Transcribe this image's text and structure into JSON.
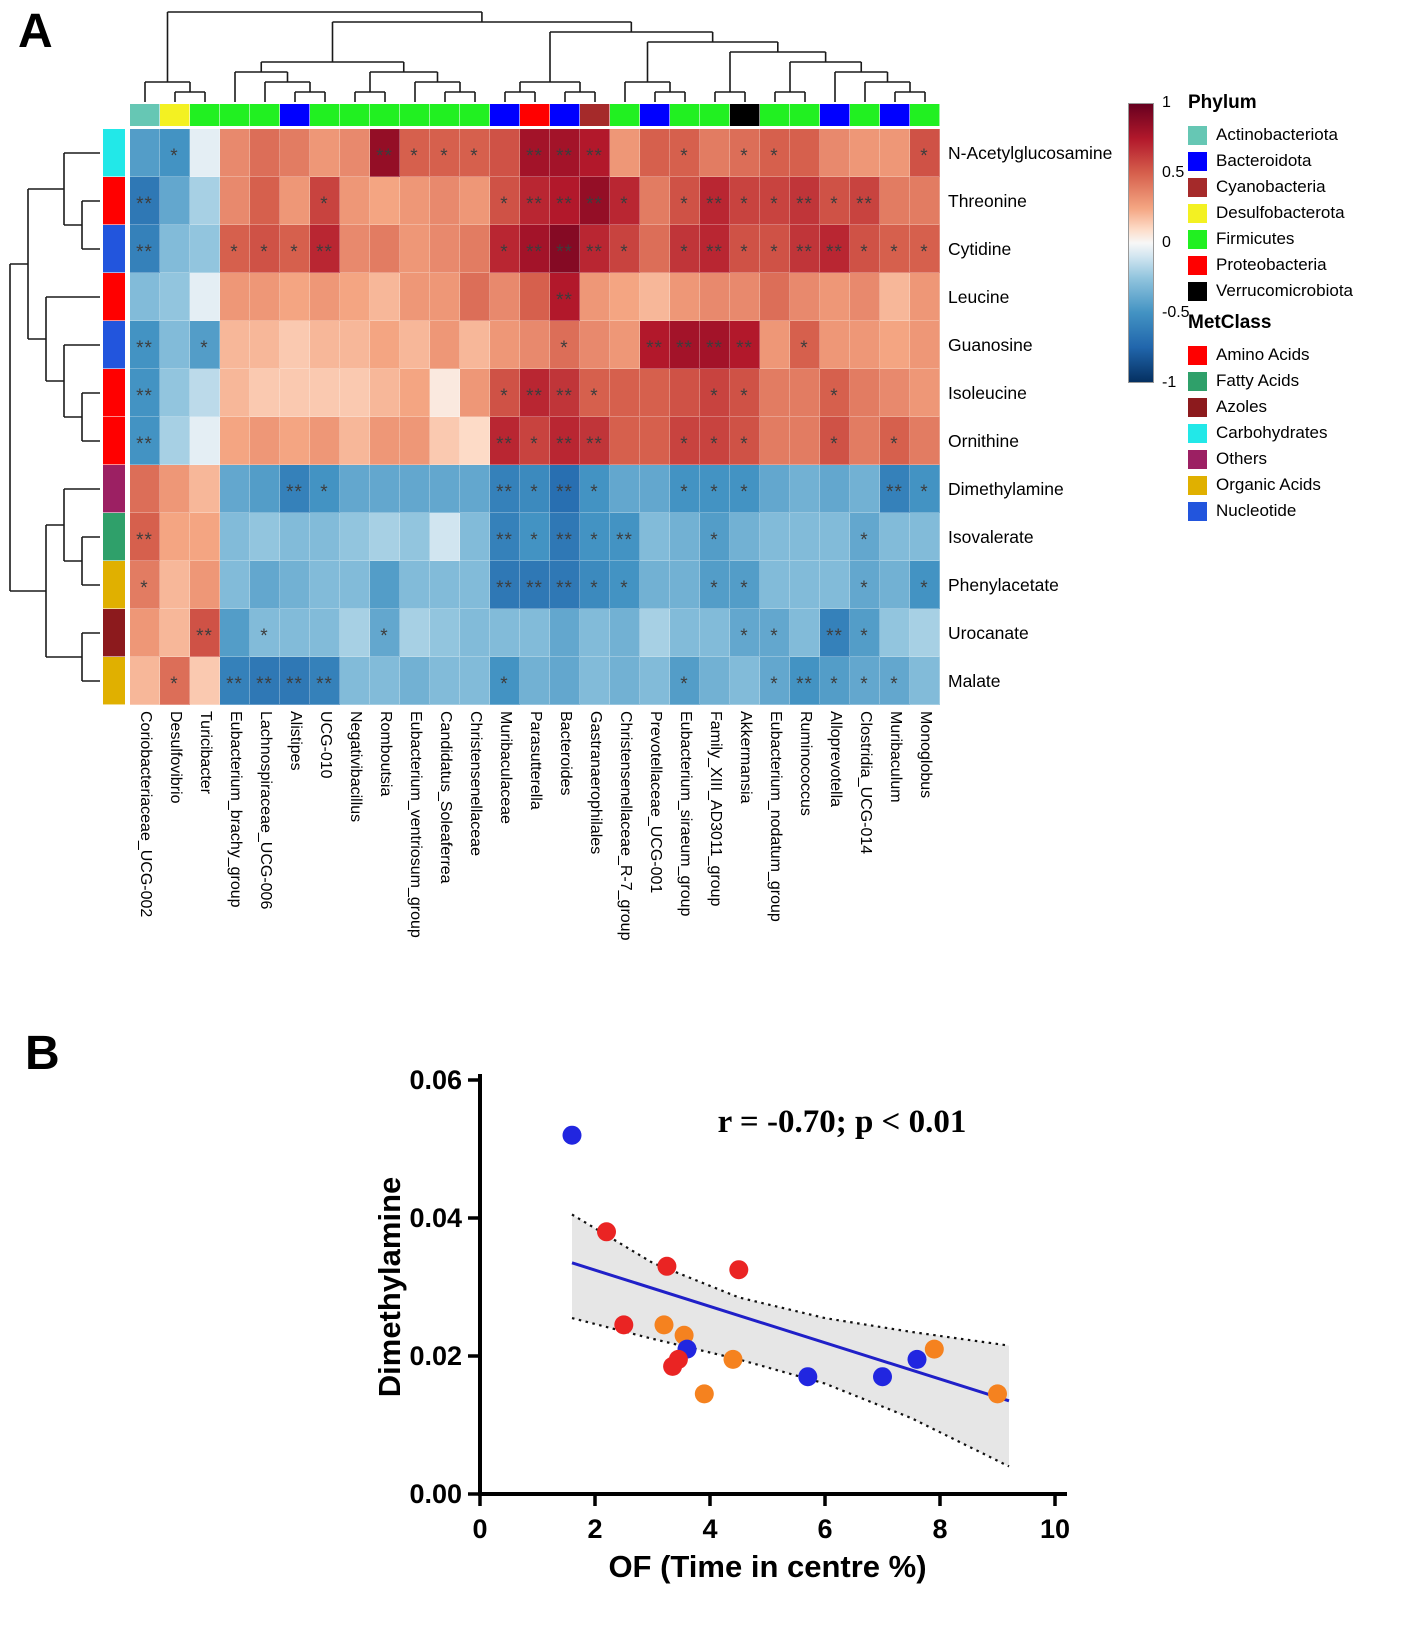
{
  "panel_a": {
    "label": "A",
    "colorbar": {
      "ticks": [
        "1",
        "0.5",
        "0",
        "-0.5",
        "-1"
      ]
    },
    "phylum_legend": {
      "title": "Phylum",
      "items": [
        {
          "label": "Actinobacteriota",
          "color": "#66C7B4"
        },
        {
          "label": "Bacteroidota",
          "color": "#0000FF"
        },
        {
          "label": "Cyanobacteria",
          "color": "#A52A2A"
        },
        {
          "label": "Desulfobacterota",
          "color": "#F3F122"
        },
        {
          "label": "Firmicutes",
          "color": "#21F021"
        },
        {
          "label": "Proteobacteria",
          "color": "#FF0000"
        },
        {
          "label": "Verrucomicrobiota",
          "color": "#000000"
        }
      ]
    },
    "metclass_legend": {
      "title": "MetClass",
      "items": [
        {
          "label": "Amino Acids",
          "color": "#FF0000",
          "textured": false
        },
        {
          "label": "Fatty Acids",
          "color": "#2FA06A",
          "textured": true
        },
        {
          "label": "Azoles",
          "color": "#8C1A1D",
          "textured": false
        },
        {
          "label": "Carbohydrates",
          "color": "#22E8E8",
          "textured": false
        },
        {
          "label": "Others",
          "color": "#9C2063",
          "textured": false
        },
        {
          "label": "Organic Acids",
          "color": "#E0B000",
          "textured": false
        },
        {
          "label": "Nucleotide",
          "color": "#2255DD",
          "textured": false
        }
      ]
    }
  },
  "panel_b": {
    "label": "B"
  },
  "chart_data": [
    {
      "type": "heatmap",
      "rows": [
        "N-Acetylglucosamine",
        "Threonine",
        "Cytidine",
        "Leucine",
        "Guanosine",
        "Isoleucine",
        "Ornithine",
        "Dimethylamine",
        "Isovalerate",
        "Phenylacetate",
        "Urocanate",
        "Malate"
      ],
      "row_metclass": [
        "Carbohydrates",
        "Amino Acids",
        "Nucleotide",
        "Amino Acids",
        "Nucleotide",
        "Amino Acids",
        "Amino Acids",
        "Others",
        "Fatty Acids",
        "Organic Acids",
        "Azoles",
        "Organic Acids"
      ],
      "columns": [
        "Coriobacteriaceae_UCG-002",
        "Desulfovibrio",
        "Turicibacter",
        "Eubacterium_brachy_group",
        "Lachnospiraceae_UCG-006",
        "Alistipes",
        "UCG-010",
        "Negativibacillus",
        "Romboutsia",
        "Eubacterium_ventriosum_group",
        "Candidatus_Soleaferrea",
        "Christensenellaceae",
        "Muribaculaceae",
        "Parasutterella",
        "Bacteroides",
        "Gastranaerophilales",
        "Christensenellaceae_R-7_group",
        "Prevotellaceae_UCG-001",
        "Eubacterium_siraeum_group",
        "Family_XIII_AD3011_group",
        "Akkermansia",
        "Eubacterium_nodatum_group",
        "Ruminococcus",
        "Alloprevotella",
        "Clostridia_UCG-014",
        "Muribaculum",
        "Monoglobus"
      ],
      "column_phylum": [
        "Actinobacteriota",
        "Desulfobacterota",
        "Firmicutes",
        "Firmicutes",
        "Firmicutes",
        "Bacteroidota",
        "Firmicutes",
        "Firmicutes",
        "Firmicutes",
        "Firmicutes",
        "Firmicutes",
        "Firmicutes",
        "Bacteroidota",
        "Proteobacteria",
        "Bacteroidota",
        "Cyanobacteria",
        "Firmicutes",
        "Bacteroidota",
        "Firmicutes",
        "Firmicutes",
        "Verrucomicrobiota",
        "Firmicutes",
        "Firmicutes",
        "Bacteroidota",
        "Firmicutes",
        "Bacteroidota",
        "Firmicutes"
      ],
      "colorscale": {
        "min": -1,
        "max": 1
      },
      "values": [
        [
          -0.45,
          -0.5,
          -0.05,
          0.35,
          0.45,
          0.4,
          0.3,
          0.35,
          0.85,
          0.5,
          0.5,
          0.5,
          0.55,
          0.8,
          0.8,
          0.75,
          0.3,
          0.5,
          0.5,
          0.4,
          0.45,
          0.5,
          0.5,
          0.35,
          0.3,
          0.3,
          0.55
        ],
        [
          -0.65,
          -0.4,
          -0.2,
          0.35,
          0.5,
          0.3,
          0.6,
          0.3,
          0.25,
          0.3,
          0.35,
          0.3,
          0.55,
          0.7,
          0.75,
          0.85,
          0.7,
          0.4,
          0.55,
          0.7,
          0.6,
          0.6,
          0.65,
          0.55,
          0.6,
          0.4,
          0.4
        ],
        [
          -0.6,
          -0.3,
          -0.25,
          0.5,
          0.55,
          0.5,
          0.7,
          0.35,
          0.4,
          0.3,
          0.35,
          0.4,
          0.7,
          0.8,
          0.9,
          0.7,
          0.6,
          0.45,
          0.65,
          0.7,
          0.55,
          0.55,
          0.65,
          0.7,
          0.55,
          0.5,
          0.5
        ],
        [
          -0.3,
          -0.25,
          -0.05,
          0.3,
          0.3,
          0.25,
          0.3,
          0.25,
          0.2,
          0.3,
          0.3,
          0.45,
          0.35,
          0.5,
          0.75,
          0.3,
          0.25,
          0.2,
          0.3,
          0.35,
          0.35,
          0.45,
          0.35,
          0.3,
          0.35,
          0.2,
          0.3
        ],
        [
          -0.5,
          -0.3,
          -0.45,
          0.2,
          0.2,
          0.15,
          0.2,
          0.2,
          0.25,
          0.2,
          0.3,
          0.2,
          0.3,
          0.35,
          0.45,
          0.35,
          0.3,
          0.75,
          0.8,
          0.8,
          0.75,
          0.3,
          0.5,
          0.3,
          0.3,
          0.25,
          0.3
        ],
        [
          -0.5,
          -0.25,
          -0.15,
          0.2,
          0.15,
          0.15,
          0.15,
          0.15,
          0.2,
          0.25,
          0.05,
          0.3,
          0.55,
          0.7,
          0.65,
          0.5,
          0.5,
          0.5,
          0.55,
          0.6,
          0.55,
          0.4,
          0.4,
          0.5,
          0.4,
          0.35,
          0.3
        ],
        [
          -0.5,
          -0.2,
          -0.05,
          0.25,
          0.3,
          0.25,
          0.3,
          0.2,
          0.3,
          0.3,
          0.15,
          0.1,
          0.7,
          0.6,
          0.7,
          0.65,
          0.5,
          0.5,
          0.6,
          0.6,
          0.55,
          0.4,
          0.4,
          0.55,
          0.4,
          0.5,
          0.4
        ],
        [
          0.45,
          0.3,
          0.2,
          -0.4,
          -0.45,
          -0.6,
          -0.5,
          -0.4,
          -0.4,
          -0.4,
          -0.4,
          -0.4,
          -0.6,
          -0.55,
          -0.7,
          -0.5,
          -0.4,
          -0.4,
          -0.5,
          -0.5,
          -0.5,
          -0.4,
          -0.35,
          -0.4,
          -0.35,
          -0.6,
          -0.5
        ],
        [
          0.5,
          0.25,
          0.25,
          -0.3,
          -0.25,
          -0.3,
          -0.3,
          -0.25,
          -0.2,
          -0.25,
          -0.1,
          -0.3,
          -0.6,
          -0.5,
          -0.65,
          -0.5,
          -0.5,
          -0.3,
          -0.35,
          -0.45,
          -0.35,
          -0.3,
          -0.3,
          -0.3,
          -0.4,
          -0.3,
          -0.3
        ],
        [
          0.4,
          0.2,
          0.3,
          -0.3,
          -0.4,
          -0.35,
          -0.3,
          -0.3,
          -0.45,
          -0.3,
          -0.3,
          -0.3,
          -0.65,
          -0.65,
          -0.65,
          -0.55,
          -0.5,
          -0.35,
          -0.35,
          -0.45,
          -0.45,
          -0.3,
          -0.3,
          -0.3,
          -0.4,
          -0.35,
          -0.5
        ],
        [
          0.3,
          0.2,
          0.55,
          -0.45,
          -0.3,
          -0.3,
          -0.3,
          -0.2,
          -0.4,
          -0.2,
          -0.25,
          -0.3,
          -0.3,
          -0.3,
          -0.4,
          -0.3,
          -0.35,
          -0.2,
          -0.3,
          -0.3,
          -0.4,
          -0.4,
          -0.3,
          -0.6,
          -0.45,
          -0.25,
          -0.2
        ],
        [
          0.2,
          0.45,
          0.15,
          -0.6,
          -0.65,
          -0.65,
          -0.6,
          -0.3,
          -0.3,
          -0.35,
          -0.3,
          -0.3,
          -0.5,
          -0.35,
          -0.4,
          -0.3,
          -0.35,
          -0.3,
          -0.45,
          -0.35,
          -0.3,
          -0.4,
          -0.5,
          -0.45,
          -0.4,
          -0.4,
          -0.3
        ]
      ],
      "sig": [
        [
          "",
          "*",
          "",
          "",
          "",
          "",
          "",
          "",
          "**",
          "*",
          "*",
          "*",
          "",
          "**",
          "**",
          "**",
          "",
          "",
          "*",
          "",
          "*",
          "*",
          "",
          "",
          "",
          "",
          "*"
        ],
        [
          "**",
          "",
          "",
          "",
          "",
          "",
          "*",
          "",
          "",
          "",
          "",
          "",
          "*",
          "**",
          "**",
          "**",
          "*",
          "",
          "*",
          "**",
          "*",
          "*",
          "**",
          "*",
          "**",
          "",
          ""
        ],
        [
          "**",
          "",
          "",
          "*",
          "*",
          "*",
          "**",
          "",
          "",
          "",
          "",
          "",
          "*",
          "**",
          "**",
          "**",
          "*",
          "",
          "*",
          "**",
          "*",
          "*",
          "**",
          "**",
          "*",
          "*",
          "*"
        ],
        [
          "",
          "",
          "",
          "",
          "",
          "",
          "",
          "",
          "",
          "",
          "",
          "",
          "",
          "",
          "**",
          "",
          "",
          "",
          "",
          "",
          "",
          "",
          "",
          "",
          "",
          "",
          ""
        ],
        [
          "**",
          "",
          "*",
          "",
          "",
          "",
          "",
          "",
          "",
          "",
          "",
          "",
          "",
          "",
          "*",
          "",
          "",
          "**",
          "**",
          "**",
          "**",
          "",
          "*",
          "",
          "",
          "",
          ""
        ],
        [
          "**",
          "",
          "",
          "",
          "",
          "",
          "",
          "",
          "",
          "",
          "",
          "",
          "*",
          "**",
          "**",
          "*",
          "",
          "",
          "",
          "*",
          "*",
          "",
          "",
          "*",
          "",
          "",
          ""
        ],
        [
          "**",
          "",
          "",
          "",
          "",
          "",
          "",
          "",
          "",
          "",
          "",
          "",
          "**",
          "*",
          "**",
          "**",
          "",
          "",
          "*",
          "*",
          "*",
          "",
          "",
          "*",
          "",
          "*",
          ""
        ],
        [
          "",
          "",
          "",
          "",
          "",
          "**",
          "*",
          "",
          "",
          "",
          "",
          "",
          "**",
          "*",
          "**",
          "*",
          "",
          "",
          "*",
          "*",
          "*",
          "",
          "",
          "",
          "",
          "**",
          "*"
        ],
        [
          "**",
          "",
          "",
          "",
          "",
          "",
          "",
          "",
          "",
          "",
          "",
          "",
          "**",
          "*",
          "**",
          "*",
          "**",
          "",
          "",
          "*",
          "",
          "",
          "",
          "",
          "*",
          "",
          ""
        ],
        [
          "*",
          "",
          "",
          "",
          "",
          "",
          "",
          "",
          "",
          "",
          "",
          "",
          "**",
          "**",
          "**",
          "*",
          "*",
          "",
          "",
          "*",
          "*",
          "",
          "",
          "",
          "*",
          "",
          "*"
        ],
        [
          "",
          "",
          "**",
          "",
          "*",
          "",
          "",
          "",
          "*",
          "",
          "",
          "",
          "",
          "",
          "",
          "",
          "",
          "",
          "",
          "",
          "*",
          "*",
          "",
          "**",
          "*",
          "",
          ""
        ],
        [
          "",
          "*",
          "",
          "**",
          "**",
          "**",
          "**",
          "",
          "",
          "",
          "",
          "",
          "*",
          "",
          "",
          "",
          "",
          "",
          "*",
          "",
          "",
          "*",
          "**",
          "*",
          "*",
          "*",
          ""
        ]
      ],
      "col_dendrogram": [
        [
          0,
          [
            1,
            2
          ]
        ],
        [
          [
            [
              3,
              [
                4,
                [
                  5,
                  6
                ]
              ]
            ],
            [
              [
                7,
                8
              ],
              [
                9,
                [
                  10,
                  11
                ]
              ]
            ]
          ],
          [
            [
              [
                12,
                13
              ],
              [
                14,
                15
              ]
            ],
            [
              [
                16,
                [
                  17,
                  18
                ]
              ],
              [
                [
                  19,
                  20
                ],
                [
                  [
                    21,
                    22
                  ],
                  [
                    23,
                    [
                      24,
                      [
                        25,
                        26
                      ]
                    ]
                  ]
                ]
              ]
            ]
          ]
        ]
      ],
      "row_dendrogram": [
        [
          [
            0,
            [
              1,
              2
            ]
          ],
          [
            3,
            [
              4,
              [
                5,
                6
              ]
            ]
          ]
        ],
        [
          [
            7,
            [
              8,
              9
            ]
          ],
          [
            10,
            11
          ]
        ]
      ]
    },
    {
      "type": "scatter",
      "annotation": "r = -0.70; p < 0.01",
      "xlabel": "OF (Time in centre %)",
      "ylabel": "Dimethylamine",
      "xlim": [
        0,
        10
      ],
      "ylim": [
        0,
        0.06
      ],
      "xtick_labels": [
        "0",
        "2",
        "4",
        "6",
        "8",
        "10"
      ],
      "ytick_labels": [
        "0.00",
        "0.02",
        "0.04",
        "0.06"
      ],
      "point_colors": {
        "blue": "#2126E0",
        "red": "#EA2423",
        "orange": "#F5821F"
      },
      "points": [
        {
          "x": 1.6,
          "y": 0.052,
          "group": "blue"
        },
        {
          "x": 2.2,
          "y": 0.038,
          "group": "red"
        },
        {
          "x": 2.5,
          "y": 0.0245,
          "group": "red"
        },
        {
          "x": 3.25,
          "y": 0.033,
          "group": "red"
        },
        {
          "x": 3.2,
          "y": 0.0245,
          "group": "orange"
        },
        {
          "x": 3.55,
          "y": 0.023,
          "group": "orange"
        },
        {
          "x": 3.6,
          "y": 0.021,
          "group": "blue"
        },
        {
          "x": 3.45,
          "y": 0.0195,
          "group": "red"
        },
        {
          "x": 3.35,
          "y": 0.0185,
          "group": "red"
        },
        {
          "x": 3.9,
          "y": 0.0145,
          "group": "orange"
        },
        {
          "x": 4.5,
          "y": 0.0325,
          "group": "red"
        },
        {
          "x": 4.4,
          "y": 0.0195,
          "group": "orange"
        },
        {
          "x": 5.7,
          "y": 0.017,
          "group": "blue"
        },
        {
          "x": 7.0,
          "y": 0.017,
          "group": "blue"
        },
        {
          "x": 7.6,
          "y": 0.0195,
          "group": "blue"
        },
        {
          "x": 7.9,
          "y": 0.021,
          "group": "orange"
        },
        {
          "x": 9.0,
          "y": 0.0145,
          "group": "orange"
        }
      ],
      "regression": {
        "x1": 1.6,
        "y1": 0.0335,
        "x2": 9.2,
        "y2": 0.0135
      },
      "band": {
        "upper": [
          [
            1.6,
            0.0405
          ],
          [
            3.0,
            0.0335
          ],
          [
            4.5,
            0.0285
          ],
          [
            6.0,
            0.0255
          ],
          [
            7.5,
            0.0235
          ],
          [
            9.2,
            0.0215
          ]
        ],
        "lower": [
          [
            1.6,
            0.0255
          ],
          [
            3.0,
            0.0225
          ],
          [
            4.5,
            0.0195
          ],
          [
            6.0,
            0.016
          ],
          [
            7.5,
            0.011
          ],
          [
            9.2,
            0.004
          ]
        ]
      }
    }
  ]
}
